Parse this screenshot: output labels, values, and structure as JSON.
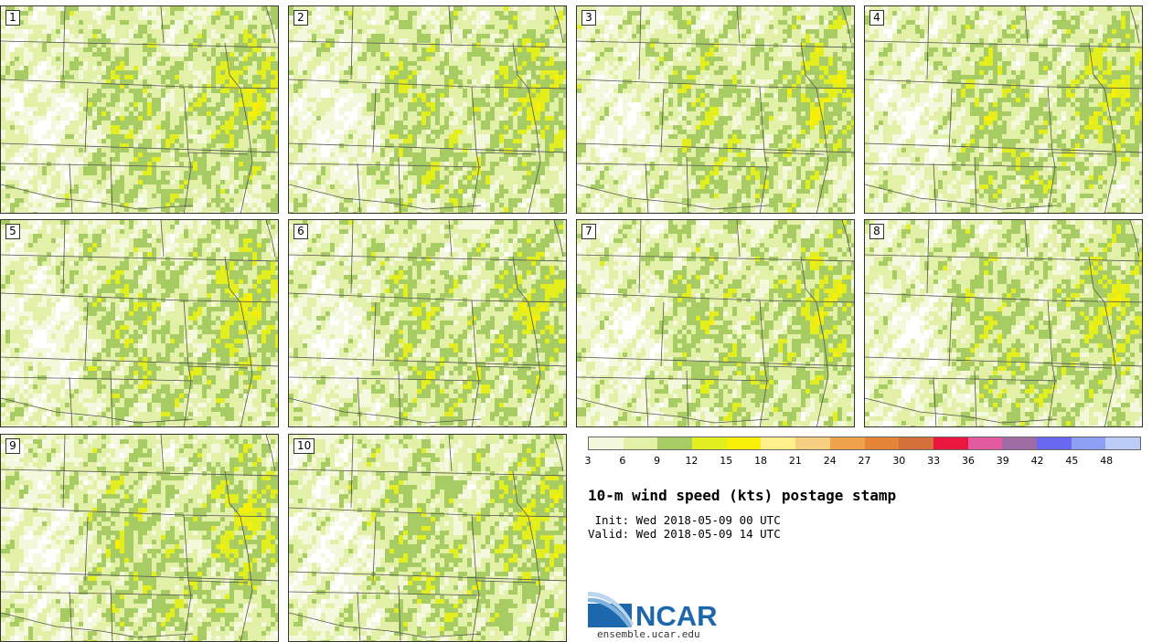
{
  "panels": [
    {
      "label": "1"
    },
    {
      "label": "2"
    },
    {
      "label": "3"
    },
    {
      "label": "4"
    },
    {
      "label": "5"
    },
    {
      "label": "6"
    },
    {
      "label": "7"
    },
    {
      "label": "8"
    },
    {
      "label": "9"
    },
    {
      "label": "10"
    }
  ],
  "colorbar": {
    "ticks": [
      "3",
      "6",
      "9",
      "12",
      "15",
      "18",
      "21",
      "24",
      "27",
      "30",
      "33",
      "36",
      "39",
      "42",
      "45",
      "48"
    ],
    "colors": [
      "#f4f8dc",
      "#e3f1a8",
      "#a8cc64",
      "#e2ee1e",
      "#f7ef08",
      "#fff08c",
      "#f6d080",
      "#efa24c",
      "#e68438",
      "#d6703a",
      "#ea163f",
      "#e35aa0",
      "#9f6ba5",
      "#6a68f0",
      "#8da0f6",
      "#bccdf8"
    ]
  },
  "title": "10-m wind speed (kts) postage stamp",
  "init": " Init: Wed 2018-05-09 00 UTC",
  "valid": "Valid: Wed 2018-05-09 14 UTC",
  "logo_text": "NCAR",
  "url": "ensemble.ucar.edu"
}
